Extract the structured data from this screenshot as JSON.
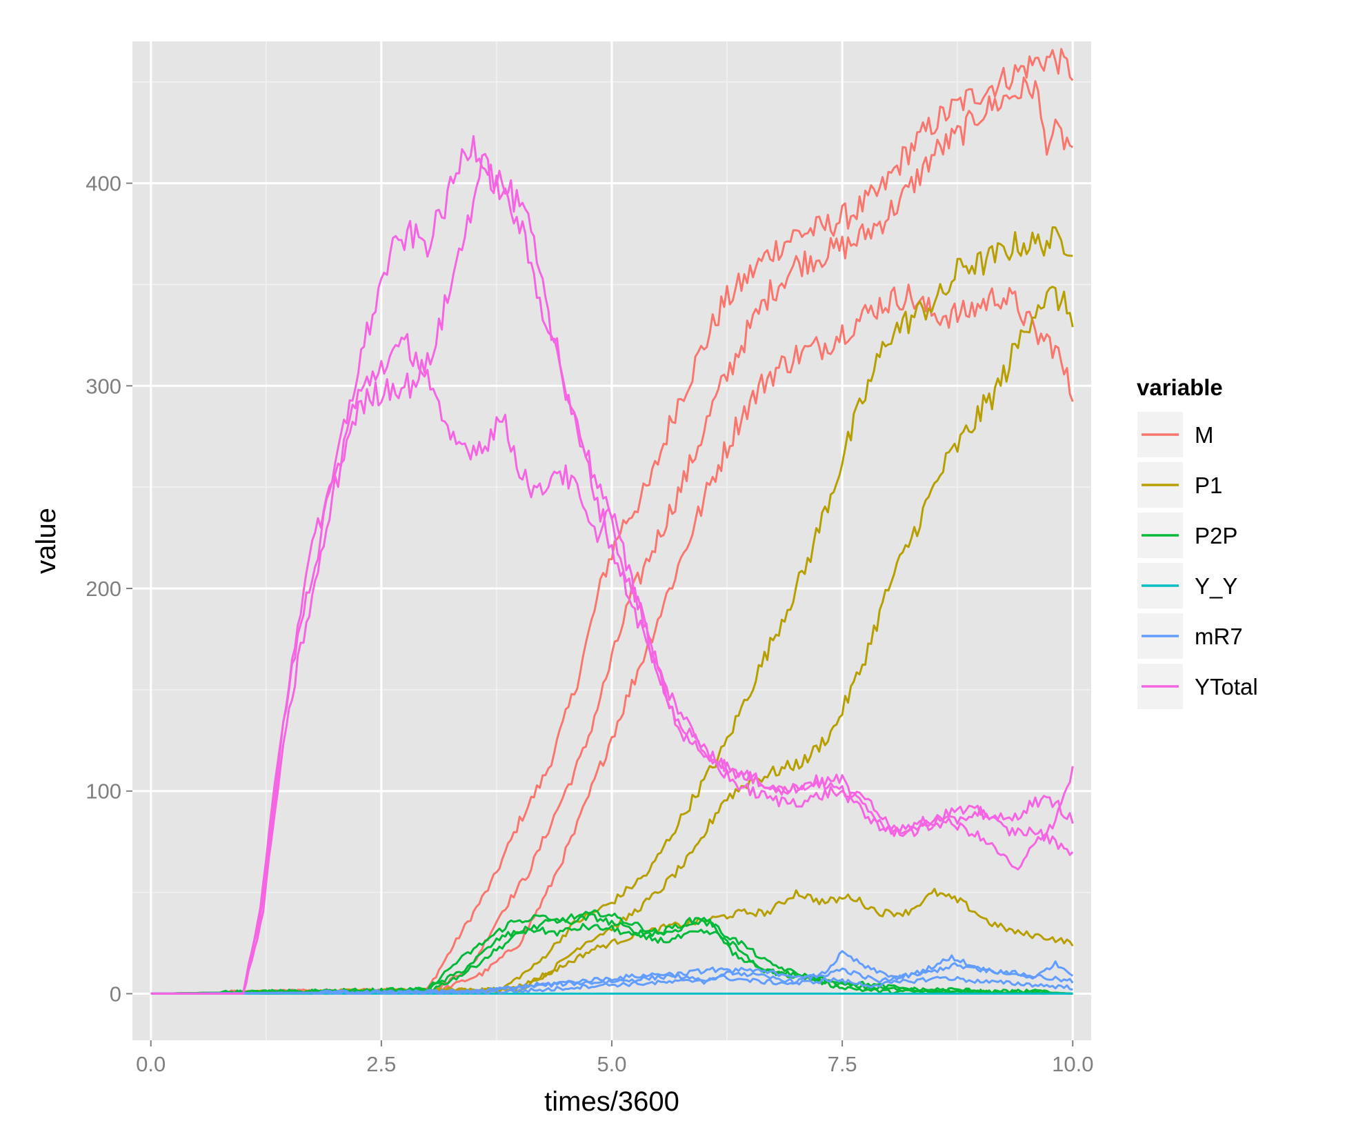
{
  "chart_data": {
    "type": "line",
    "title": "",
    "xlabel": "times/3600",
    "ylabel": "value",
    "xlim": [
      -0.2,
      10.2
    ],
    "ylim": [
      -23,
      470
    ],
    "x_ticks": [
      0.0,
      2.5,
      5.0,
      7.5,
      10.0
    ],
    "x_tick_labels": [
      "0.0",
      "2.5",
      "5.0",
      "7.5",
      "10.0"
    ],
    "y_ticks": [
      0,
      100,
      200,
      300,
      400
    ],
    "y_tick_labels": [
      "0",
      "100",
      "200",
      "300",
      "400"
    ],
    "background": "#e5e5e5",
    "grid": true,
    "grid_color": "#ffffff",
    "legend": {
      "title": "variable",
      "position": "right",
      "entries": [
        {
          "name": "M",
          "color": "#f8766d"
        },
        {
          "name": "P1",
          "color": "#b79f00"
        },
        {
          "name": "P2P",
          "color": "#00ba38"
        },
        {
          "name": "Y_Y",
          "color": "#00bfc4"
        },
        {
          "name": "mR7",
          "color": "#619cff"
        },
        {
          "name": "YTotal",
          "color": "#f564e3"
        }
      ]
    },
    "series": [
      {
        "name": "M",
        "color": "#f8766d",
        "x": [
          0,
          3.0,
          3.3,
          3.7,
          4.0,
          4.3,
          4.6,
          4.9,
          5.1,
          5.4,
          5.7,
          6.0,
          6.2,
          6.5,
          6.7,
          7.0,
          7.3,
          7.6,
          7.9,
          8.2,
          8.5,
          8.8,
          9.0,
          9.2,
          9.4,
          9.6,
          9.8,
          10.0
        ],
        "y": [
          0,
          2,
          25,
          55,
          85,
          110,
          150,
          205,
          230,
          250,
          290,
          320,
          340,
          355,
          365,
          375,
          378,
          385,
          395,
          415,
          430,
          440,
          445,
          450,
          455,
          460,
          462,
          455
        ]
      },
      {
        "name": "M",
        "color": "#f8766d",
        "x": [
          0,
          3.1,
          3.5,
          3.8,
          4.1,
          4.4,
          4.7,
          5.0,
          5.2,
          5.5,
          5.8,
          6.1,
          6.4,
          6.7,
          7.0,
          7.3,
          7.6,
          7.9,
          8.2,
          8.5,
          8.8,
          9.0,
          9.2,
          9.4,
          9.6,
          9.7,
          9.8,
          10.0
        ],
        "y": [
          0,
          2,
          15,
          40,
          60,
          90,
          120,
          165,
          195,
          225,
          255,
          290,
          320,
          345,
          360,
          365,
          370,
          380,
          395,
          415,
          425,
          435,
          440,
          445,
          448,
          420,
          425,
          418
        ]
      },
      {
        "name": "M",
        "color": "#f8766d",
        "x": [
          0,
          3.1,
          3.6,
          4.0,
          4.3,
          4.6,
          4.9,
          5.2,
          5.5,
          5.8,
          6.1,
          6.4,
          6.7,
          7.0,
          7.3,
          7.6,
          7.9,
          8.2,
          8.5,
          8.8,
          9.0,
          9.2,
          9.4,
          9.6,
          9.8,
          10.0
        ],
        "y": [
          0,
          1,
          10,
          25,
          50,
          80,
          115,
          150,
          185,
          220,
          255,
          285,
          305,
          315,
          320,
          330,
          340,
          345,
          335,
          335,
          340,
          345,
          340,
          325,
          320,
          295
        ]
      },
      {
        "name": "P1",
        "color": "#b79f00",
        "x": [
          0,
          3.8,
          4.2,
          4.6,
          5.0,
          5.4,
          5.8,
          6.2,
          6.5,
          6.8,
          7.1,
          7.4,
          7.7,
          8.0,
          8.3,
          8.6,
          8.8,
          9.0,
          9.2,
          9.4,
          9.6,
          9.8,
          10.0
        ],
        "y": [
          0,
          2,
          15,
          35,
          45,
          60,
          90,
          120,
          150,
          180,
          210,
          250,
          290,
          325,
          335,
          345,
          360,
          360,
          365,
          370,
          370,
          372,
          370
        ]
      },
      {
        "name": "P1",
        "color": "#b79f00",
        "x": [
          0,
          3.9,
          4.3,
          4.7,
          5.1,
          5.5,
          5.9,
          6.2,
          6.5,
          6.8,
          7.1,
          7.4,
          7.7,
          8.0,
          8.3,
          8.6,
          8.9,
          9.2,
          9.4,
          9.6,
          9.8,
          10.0
        ],
        "y": [
          0,
          2,
          10,
          25,
          35,
          50,
          70,
          95,
          105,
          110,
          115,
          130,
          160,
          200,
          230,
          260,
          280,
          300,
          320,
          340,
          345,
          335
        ]
      },
      {
        "name": "P1",
        "color": "#b79f00",
        "x": [
          0,
          4.0,
          4.4,
          4.8,
          5.2,
          5.6,
          6.0,
          6.4,
          6.7,
          7.0,
          7.3,
          7.6,
          7.9,
          8.2,
          8.5,
          8.8,
          9.1,
          9.4,
          9.7,
          10.0
        ],
        "y": [
          0,
          2,
          12,
          22,
          28,
          33,
          36,
          40,
          40,
          50,
          45,
          48,
          40,
          40,
          50,
          45,
          35,
          30,
          28,
          25
        ]
      },
      {
        "name": "P2P",
        "color": "#00ba38",
        "x": [
          0,
          3.0,
          3.3,
          3.6,
          3.9,
          4.2,
          4.5,
          4.8,
          5.0,
          5.3,
          5.6,
          5.9,
          6.1,
          6.3,
          6.5,
          6.8,
          7.1,
          7.4,
          7.7,
          8.0,
          8.5,
          9.0,
          9.5,
          10.0
        ],
        "y": [
          0,
          2,
          15,
          25,
          35,
          38,
          35,
          38,
          35,
          30,
          30,
          35,
          35,
          20,
          15,
          10,
          8,
          4,
          2,
          1,
          1,
          1,
          1,
          0
        ]
      },
      {
        "name": "P2P",
        "color": "#00ba38",
        "x": [
          0,
          3.0,
          3.4,
          3.7,
          4.0,
          4.3,
          4.6,
          4.9,
          5.2,
          5.5,
          5.8,
          6.0,
          6.2,
          6.4,
          6.7,
          7.0,
          7.4,
          7.8,
          8.2,
          8.6,
          9.0,
          9.5,
          10.0
        ],
        "y": [
          0,
          1,
          10,
          20,
          30,
          35,
          38,
          40,
          35,
          30,
          35,
          38,
          30,
          25,
          15,
          10,
          5,
          3,
          2,
          1,
          1,
          1,
          0
        ]
      },
      {
        "name": "P2P",
        "color": "#00ba38",
        "x": [
          0,
          3.0,
          3.4,
          3.8,
          4.1,
          4.4,
          4.7,
          5.0,
          5.3,
          5.6,
          5.9,
          6.1,
          6.3,
          6.6,
          6.9,
          7.2,
          7.5,
          7.9,
          8.3,
          8.7,
          9.2,
          9.6,
          10.0
        ],
        "y": [
          0,
          2,
          12,
          28,
          32,
          30,
          33,
          32,
          28,
          26,
          30,
          30,
          25,
          12,
          10,
          8,
          6,
          4,
          2,
          2,
          1,
          1,
          0
        ]
      },
      {
        "name": "Y_Y",
        "color": "#00bfc4",
        "x": [
          0,
          10
        ],
        "y": [
          0,
          0
        ]
      },
      {
        "name": "mR7",
        "color": "#619cff",
        "x": [
          0,
          3.5,
          4.0,
          4.5,
          5.0,
          5.5,
          5.8,
          6.1,
          6.4,
          6.7,
          7.0,
          7.3,
          7.5,
          7.8,
          8.1,
          8.4,
          8.7,
          9.0,
          9.3,
          9.6,
          9.8,
          10.0
        ],
        "y": [
          0,
          1,
          3,
          5,
          6,
          8,
          10,
          12,
          10,
          8,
          6,
          10,
          20,
          12,
          8,
          10,
          14,
          12,
          10,
          8,
          15,
          10
        ]
      },
      {
        "name": "mR7",
        "color": "#619cff",
        "x": [
          0,
          3.6,
          4.1,
          4.6,
          5.1,
          5.6,
          6.0,
          6.4,
          6.8,
          7.2,
          7.5,
          7.9,
          8.3,
          8.7,
          9.0,
          9.4,
          9.7,
          10.0
        ],
        "y": [
          0,
          1,
          4,
          6,
          8,
          10,
          6,
          12,
          10,
          8,
          12,
          6,
          10,
          18,
          12,
          10,
          8,
          6
        ]
      },
      {
        "name": "mR7",
        "color": "#619cff",
        "x": [
          0,
          3.8,
          4.3,
          4.8,
          5.3,
          5.8,
          6.2,
          6.6,
          7.0,
          7.4,
          7.8,
          8.2,
          8.6,
          9.0,
          9.4,
          9.7,
          10.0
        ],
        "y": [
          0,
          1,
          2,
          4,
          5,
          6,
          8,
          6,
          5,
          7,
          4,
          6,
          8,
          6,
          5,
          4,
          3
        ]
      },
      {
        "name": "YTotal",
        "color": "#f564e3",
        "x": [
          0,
          1.0,
          1.2,
          1.4,
          1.6,
          1.8,
          2.0,
          2.2,
          2.4,
          2.6,
          2.8,
          3.0,
          3.2,
          3.4,
          3.5,
          3.7,
          3.9,
          4.1,
          4.3,
          4.5,
          4.7,
          4.9,
          5.1,
          5.3,
          5.5,
          5.7,
          5.9,
          6.1,
          6.3,
          6.5,
          6.8,
          7.1,
          7.4,
          7.7,
          8.0,
          8.3,
          8.6,
          8.9,
          9.2,
          9.4,
          9.6,
          9.8,
          10.0
        ],
        "y": [
          0,
          0,
          40,
          120,
          180,
          215,
          260,
          300,
          335,
          365,
          375,
          370,
          390,
          415,
          420,
          405,
          395,
          380,
          335,
          300,
          270,
          245,
          215,
          190,
          160,
          135,
          125,
          115,
          105,
          100,
          95,
          95,
          100,
          95,
          80,
          80,
          85,
          80,
          70,
          60,
          75,
          85,
          110
        ]
      },
      {
        "name": "YTotal",
        "color": "#f564e3",
        "x": [
          0,
          1.0,
          1.2,
          1.4,
          1.6,
          1.8,
          2.0,
          2.2,
          2.4,
          2.6,
          2.8,
          3.0,
          3.2,
          3.4,
          3.6,
          3.8,
          4.0,
          4.2,
          4.4,
          4.6,
          4.8,
          5.0,
          5.2,
          5.4,
          5.6,
          5.8,
          6.0,
          6.3,
          6.6,
          6.9,
          7.2,
          7.5,
          7.8,
          8.1,
          8.4,
          8.7,
          9.0,
          9.3,
          9.6,
          9.8,
          10.0
        ],
        "y": [
          0,
          0,
          35,
          110,
          165,
          205,
          250,
          285,
          295,
          300,
          300,
          310,
          340,
          375,
          410,
          395,
          380,
          345,
          320,
          280,
          250,
          220,
          195,
          170,
          150,
          135,
          120,
          110,
          105,
          100,
          105,
          100,
          95,
          80,
          85,
          90,
          90,
          85,
          95,
          95,
          85
        ]
      },
      {
        "name": "YTotal",
        "color": "#f564e3",
        "x": [
          0,
          1.0,
          1.2,
          1.4,
          1.6,
          1.8,
          2.0,
          2.2,
          2.4,
          2.6,
          2.8,
          3.0,
          3.2,
          3.4,
          3.6,
          3.8,
          4.0,
          4.2,
          4.4,
          4.6,
          4.8,
          5.0,
          5.2,
          5.4,
          5.6,
          5.8,
          6.0,
          6.3,
          6.6,
          6.9,
          7.2,
          7.5,
          7.8,
          8.1,
          8.4,
          8.7,
          9.0,
          9.3,
          9.6,
          9.8,
          10.0
        ],
        "y": [
          0,
          0,
          45,
          125,
          185,
          230,
          255,
          290,
          305,
          315,
          320,
          305,
          275,
          270,
          270,
          285,
          260,
          245,
          260,
          250,
          225,
          240,
          205,
          175,
          145,
          125,
          120,
          110,
          105,
          100,
          105,
          105,
          85,
          80,
          85,
          85,
          90,
          80,
          80,
          75,
          70
        ]
      }
    ]
  }
}
